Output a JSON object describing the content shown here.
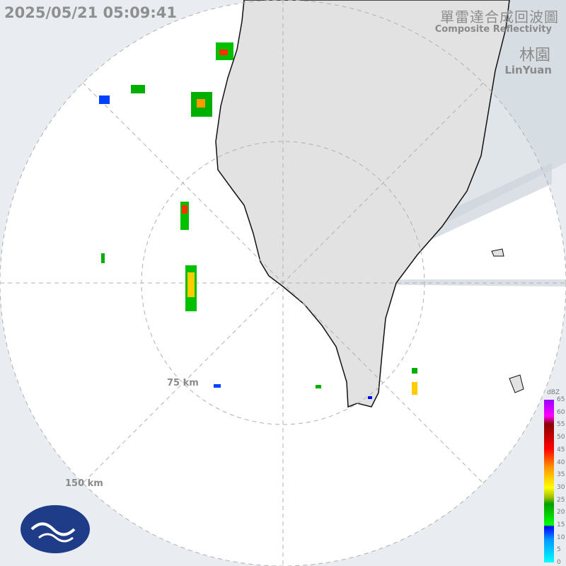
{
  "header": {
    "timestamp": "2025/05/21 05:09:41",
    "title_zh": "單雷達合成回波圖",
    "title_en": "Composite Reflectivity",
    "station_zh": "林園",
    "station_en": "LinYuan"
  },
  "range_rings": [
    {
      "label": "75 km"
    },
    {
      "label": "150 km"
    }
  ],
  "colorbar": {
    "unit": "dBZ",
    "ticks": [
      "65",
      "60",
      "55",
      "50",
      "45",
      "40",
      "35",
      "30",
      "25",
      "20",
      "15",
      "10",
      "5",
      "0"
    ]
  },
  "colors": {
    "land": "#e2e2e2",
    "outside": "#e9edf1",
    "inside": "#ffffff",
    "coast": "#111111",
    "blocked_beam": "#ccd3db"
  },
  "logo": {
    "name": "cwa-logo-icon"
  }
}
